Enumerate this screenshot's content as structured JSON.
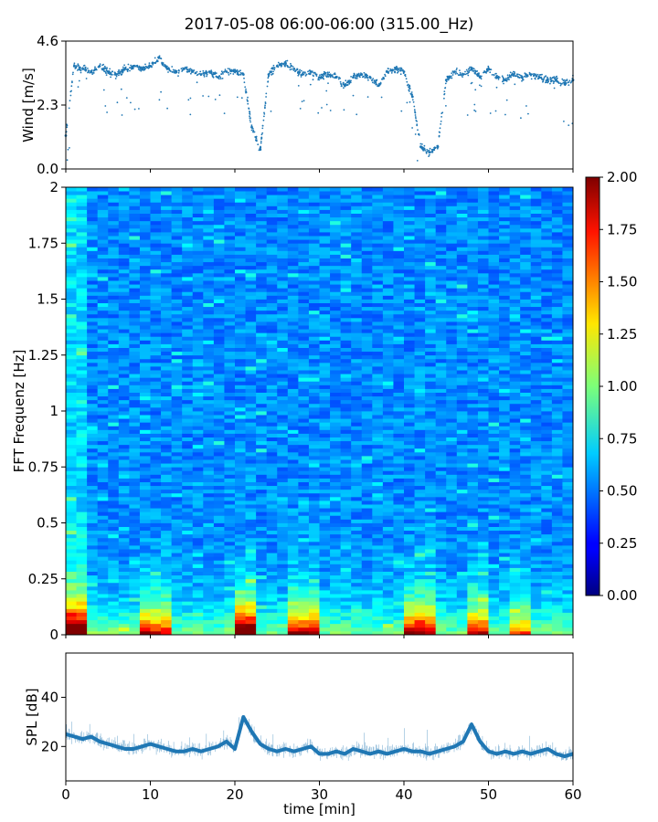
{
  "title": "2017-05-08 06:00-06:00 (315.00_Hz)",
  "chart_data": [
    {
      "id": "wind",
      "type": "scatter",
      "ylabel": "Wind [m/s]",
      "xlim": [
        0,
        60
      ],
      "ylim": [
        0,
        4.6
      ],
      "yticks": [
        "0.0",
        "2.3",
        "4.6"
      ],
      "ytick_values": [
        0,
        2.3,
        4.6
      ],
      "color": "#1f77b4",
      "x": [
        0,
        1,
        2,
        3,
        4,
        5,
        6,
        7,
        8,
        9,
        10,
        11,
        12,
        13,
        14,
        15,
        16,
        17,
        18,
        19,
        20,
        21,
        22,
        23,
        24,
        25,
        26,
        27,
        28,
        29,
        30,
        31,
        32,
        33,
        34,
        35,
        36,
        37,
        38,
        39,
        40,
        41,
        42,
        43,
        44,
        45,
        46,
        47,
        48,
        49,
        50,
        51,
        52,
        53,
        54,
        55,
        56,
        57,
        58,
        59,
        60
      ],
      "y": [
        1.2,
        3.7,
        3.6,
        3.5,
        3.7,
        3.5,
        3.4,
        3.6,
        3.7,
        3.6,
        3.7,
        4.0,
        3.6,
        3.5,
        3.6,
        3.5,
        3.4,
        3.5,
        3.3,
        3.5,
        3.5,
        3.4,
        1.5,
        0.7,
        3.4,
        3.7,
        3.8,
        3.6,
        3.4,
        3.5,
        3.3,
        3.4,
        3.3,
        3.0,
        3.3,
        3.4,
        3.3,
        3.0,
        3.5,
        3.6,
        3.5,
        2.6,
        0.8,
        0.6,
        0.8,
        3.2,
        3.5,
        3.4,
        3.6,
        3.3,
        3.6,
        3.3,
        3.2,
        3.4,
        3.3,
        3.4,
        3.3,
        3.2,
        3.2,
        3.1,
        3.2
      ]
    },
    {
      "id": "spectrogram",
      "type": "heatmap",
      "ylabel": "FFT Frequenz [Hz]",
      "xlim": [
        0,
        60
      ],
      "ylim": [
        0,
        2
      ],
      "yticks": [
        "0",
        "0.25",
        "0.5",
        "0.75",
        "1",
        "1.25",
        "1.5",
        "1.75",
        "2"
      ],
      "ytick_values": [
        0,
        0.25,
        0.5,
        0.75,
        1,
        1.25,
        1.5,
        1.75,
        2
      ],
      "colormap": "jet",
      "colorbar_range": [
        0,
        2
      ],
      "colorbar_ticks": [
        "0.00",
        "0.25",
        "0.50",
        "0.75",
        "1.00",
        "1.25",
        "1.50",
        "1.75",
        "2.00"
      ],
      "colorbar_tick_values": [
        0,
        0.25,
        0.5,
        0.75,
        1,
        1.25,
        1.5,
        1.75,
        2
      ]
    },
    {
      "id": "spl",
      "type": "line",
      "ylabel": "SPL [dB]",
      "xlabel": "time [min]",
      "xlim": [
        0,
        60
      ],
      "ylim": [
        6,
        58
      ],
      "yticks": [
        "20",
        "40"
      ],
      "ytick_values": [
        20,
        40
      ],
      "xticks": [
        "0",
        "10",
        "20",
        "30",
        "40",
        "50",
        "60"
      ],
      "xtick_values": [
        0,
        10,
        20,
        30,
        40,
        50,
        60
      ],
      "color": "#1f77b4",
      "x": [
        0,
        1,
        2,
        3,
        4,
        5,
        6,
        7,
        8,
        9,
        10,
        11,
        12,
        13,
        14,
        15,
        16,
        17,
        18,
        19,
        20,
        21,
        22,
        23,
        24,
        25,
        26,
        27,
        28,
        29,
        30,
        31,
        32,
        33,
        34,
        35,
        36,
        37,
        38,
        39,
        40,
        41,
        42,
        43,
        44,
        45,
        46,
        47,
        48,
        49,
        50,
        51,
        52,
        53,
        54,
        55,
        56,
        57,
        58,
        59,
        60
      ],
      "y": [
        25,
        24,
        23,
        24,
        22,
        21,
        20,
        19,
        19,
        20,
        21,
        20,
        19,
        18,
        18,
        19,
        18,
        19,
        20,
        22,
        19,
        32,
        26,
        21,
        19,
        18,
        19,
        18,
        19,
        20,
        17,
        17,
        18,
        17,
        19,
        18,
        17,
        18,
        17,
        18,
        19,
        18,
        18,
        17,
        18,
        19,
        20,
        22,
        29,
        22,
        18,
        17,
        18,
        17,
        18,
        17,
        18,
        19,
        17,
        16,
        17
      ]
    }
  ]
}
